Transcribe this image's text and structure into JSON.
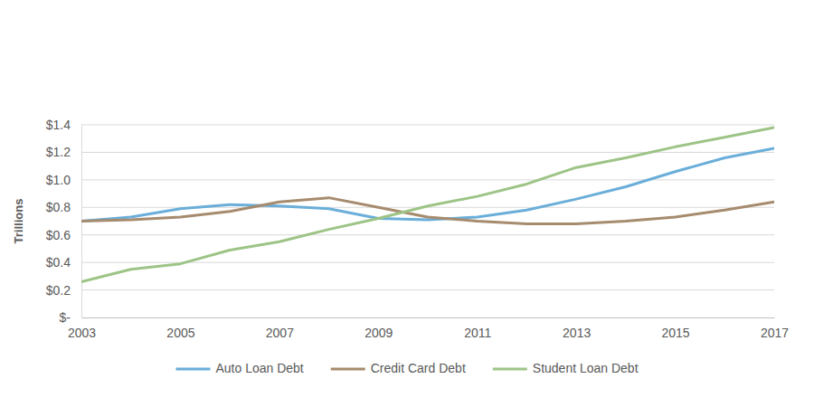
{
  "chart_data": {
    "type": "line",
    "y_label": "Trillions",
    "x": [
      2003,
      2004,
      2005,
      2006,
      2007,
      2008,
      2009,
      2010,
      2011,
      2012,
      2013,
      2014,
      2015,
      2016,
      2017
    ],
    "series": [
      {
        "name": "Auto Loan Debt",
        "color": "#6aaed9",
        "values": [
          0.7,
          0.73,
          0.79,
          0.82,
          0.81,
          0.79,
          0.72,
          0.71,
          0.73,
          0.78,
          0.86,
          0.95,
          1.06,
          1.16,
          1.23
        ]
      },
      {
        "name": "Credit Card Debt",
        "color": "#a68b6e",
        "values": [
          0.7,
          0.71,
          0.73,
          0.77,
          0.84,
          0.87,
          0.8,
          0.73,
          0.7,
          0.68,
          0.68,
          0.7,
          0.73,
          0.78,
          0.84
        ]
      },
      {
        "name": "Student Loan Debt",
        "color": "#9dc486",
        "values": [
          0.26,
          0.35,
          0.39,
          0.49,
          0.55,
          0.64,
          0.72,
          0.81,
          0.88,
          0.97,
          1.09,
          1.16,
          1.24,
          1.31,
          1.38
        ]
      }
    ],
    "xlim": [
      2003,
      2017
    ],
    "xticks": [
      2003,
      2005,
      2007,
      2009,
      2011,
      2013,
      2015,
      2017
    ],
    "ylim": [
      0,
      1.4
    ],
    "yticks": [
      {
        "value": 0,
        "label": "$-"
      },
      {
        "value": 0.2,
        "label": "$0.2"
      },
      {
        "value": 0.4,
        "label": "$0.4"
      },
      {
        "value": 0.6,
        "label": "$0.6"
      },
      {
        "value": 0.8,
        "label": "$0.8"
      },
      {
        "value": 1.0,
        "label": "$1.0"
      },
      {
        "value": 1.2,
        "label": "$1.2"
      },
      {
        "value": 1.4,
        "label": "$1.4"
      }
    ],
    "grid": true,
    "legend": "bottom"
  }
}
